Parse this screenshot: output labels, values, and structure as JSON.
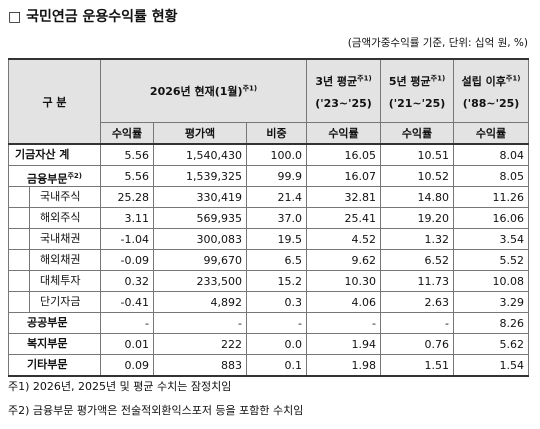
{
  "header": {
    "title": "□ 국민연금 운용수익률 현황",
    "unit": "(금액가중수익률 기준, 단위: 십억 원, %)"
  },
  "table": {
    "head": {
      "category": "구 분",
      "groups": [
        {
          "label": "2026년 현재(1월)",
          "note": "주1)"
        },
        {
          "label": "3년 평균",
          "note": "주1)",
          "period": "('23~'25)"
        },
        {
          "label": "5년 평균",
          "note": "주1)",
          "period": "('21~'25)"
        },
        {
          "label": "설립 이후",
          "note": "주1)",
          "period": "('88~'25)"
        }
      ],
      "columns": [
        "수익률",
        "평가액",
        "비중",
        "수익률",
        "수익률",
        "수익률"
      ]
    },
    "rows": [
      {
        "label": "기금자산 계",
        "cells": [
          "5.56",
          "1,540,430",
          "100.0",
          "16.05",
          "10.51",
          "8.04"
        ]
      },
      {
        "label": "금융부문",
        "note": "주2)",
        "cells": [
          "5.56",
          "1,539,325",
          "99.9",
          "16.07",
          "10.52",
          "8.05"
        ]
      },
      {
        "label": "국내주식",
        "cells": [
          "25.28",
          "330,419",
          "21.4",
          "32.81",
          "14.80",
          "11.26"
        ]
      },
      {
        "label": "해외주식",
        "cells": [
          "3.11",
          "569,935",
          "37.0",
          "25.41",
          "19.20",
          "16.06"
        ]
      },
      {
        "label": "국내채권",
        "cells": [
          "-1.04",
          "300,083",
          "19.5",
          "4.52",
          "1.32",
          "3.54"
        ]
      },
      {
        "label": "해외채권",
        "cells": [
          "-0.09",
          "99,670",
          "6.5",
          "9.62",
          "6.52",
          "5.52"
        ]
      },
      {
        "label": "대체투자",
        "cells": [
          "0.32",
          "233,500",
          "15.2",
          "10.30",
          "11.73",
          "10.08"
        ]
      },
      {
        "label": "단기자금",
        "cells": [
          "-0.41",
          "4,892",
          "0.3",
          "4.06",
          "2.63",
          "3.29"
        ]
      },
      {
        "label": "공공부문",
        "cells": [
          "-",
          "-",
          "-",
          "-",
          "-",
          "8.26"
        ]
      },
      {
        "label": "복지부문",
        "cells": [
          "0.01",
          "222",
          "0.0",
          "1.94",
          "0.76",
          "5.62"
        ]
      },
      {
        "label": "기타부문",
        "cells": [
          "0.09",
          "883",
          "0.1",
          "1.98",
          "1.51",
          "1.54"
        ]
      }
    ]
  },
  "notes": [
    "주1) 2026년, 2025년 및 평균 수치는 잠정치임",
    "주2) 금융부문 평가액은 전술적외환익스포저 등을 포함한 수치임"
  ]
}
